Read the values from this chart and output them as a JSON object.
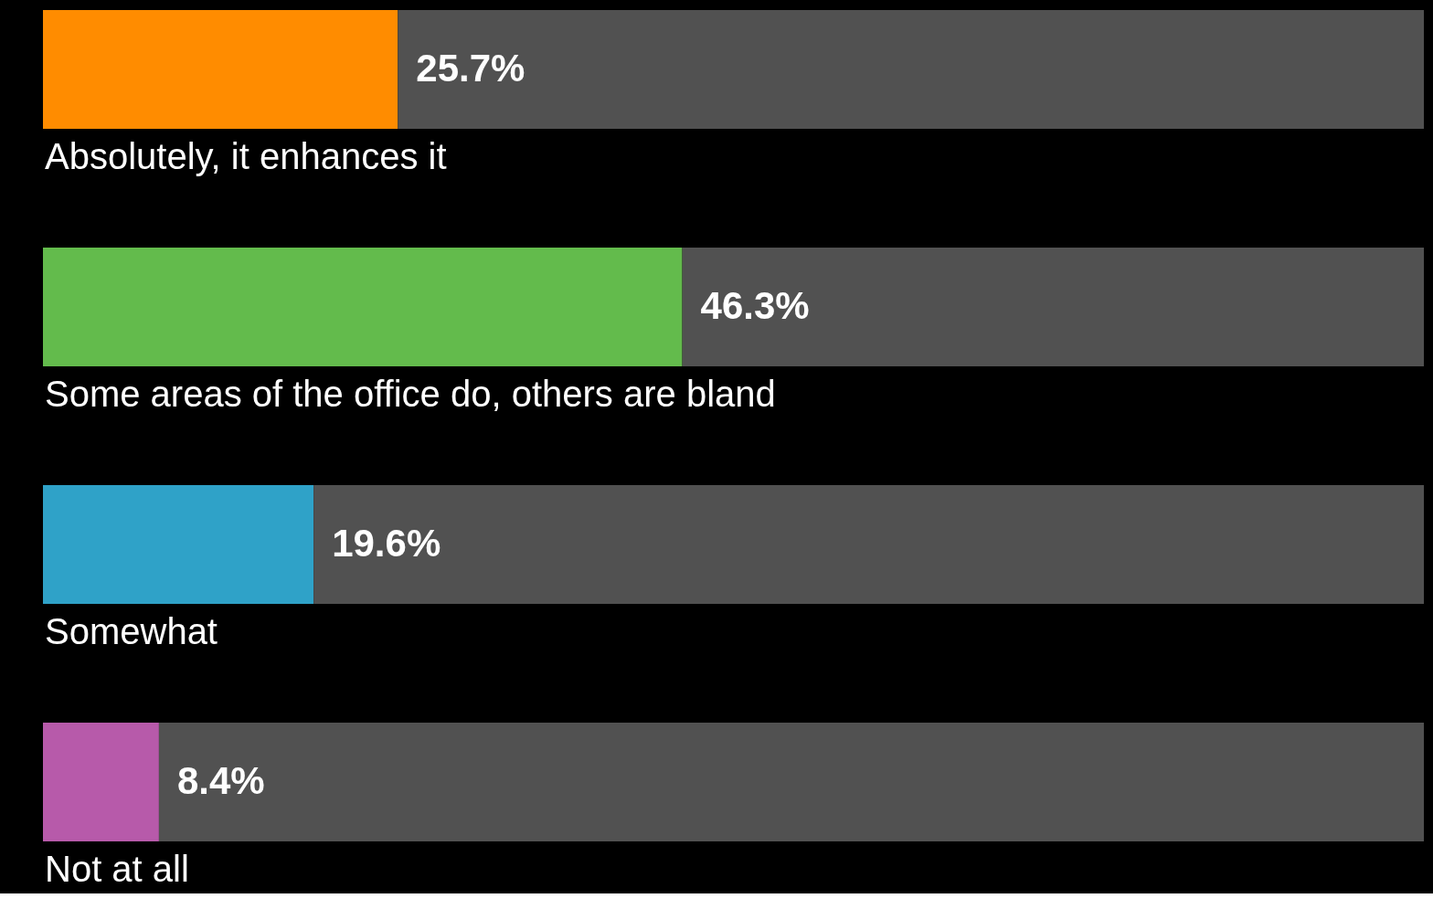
{
  "chart_data": {
    "type": "bar",
    "orientation": "horizontal",
    "stacked": true,
    "categories": [
      "Absolutely, it enhances it",
      "Some areas of the office do, others are bland",
      "Somewhat",
      "Not at all"
    ],
    "series": [
      {
        "colors": [
          "#ff8c00",
          "#63bb4c",
          "#2fa2c8",
          "#b75aaa"
        ],
        "values": [
          25.7,
          46.3,
          19.6,
          8.4
        ],
        "value_labels": [
          "25.7%",
          "46.3%",
          "19.6%",
          "8.4%"
        ]
      },
      {
        "color": "#515151",
        "values": [
          74.3,
          53.7,
          80.4,
          91.6
        ]
      }
    ],
    "xlim": [
      0,
      100
    ],
    "tick_labels": false
  }
}
